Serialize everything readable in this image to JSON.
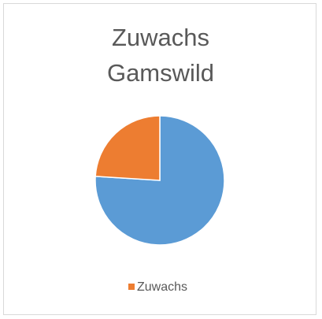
{
  "chart_data": {
    "type": "pie",
    "title": "Zuwachs Gamswild",
    "categories": [
      null,
      "Zuwachs"
    ],
    "values": [
      76,
      24
    ],
    "colors": [
      "#5b9bd5",
      "#ed7d31"
    ],
    "legend": "bottom"
  }
}
